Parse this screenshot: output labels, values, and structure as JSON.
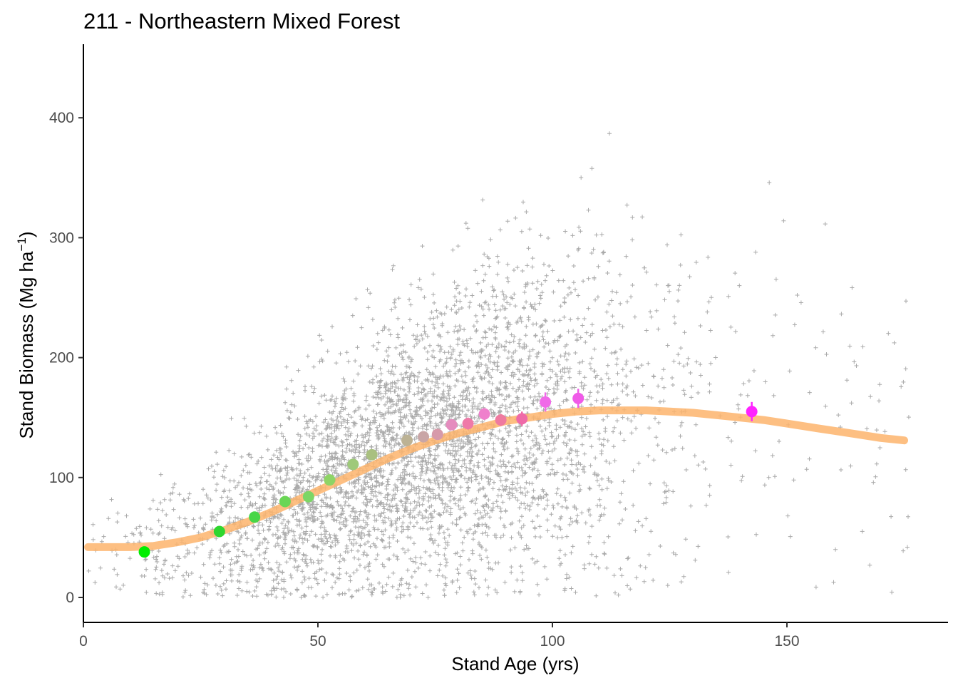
{
  "chart_data": {
    "type": "scatter",
    "title": "211 - Northeastern Mixed Forest",
    "xlabel": "Stand Age (yrs)",
    "ylabel_main": "Stand Biomass (Mg ha",
    "ylabel_sup": "−1",
    "ylabel_close": ")",
    "xlim": [
      0,
      182
    ],
    "ylim": [
      -20,
      460
    ],
    "xticks": [
      0,
      50,
      100,
      150
    ],
    "yticks": [
      0,
      100,
      200,
      300,
      400
    ],
    "grid": false,
    "legend": "none",
    "series": [
      {
        "type": "line",
        "color": "#fdb46c",
        "points": [
          [
            1,
            42
          ],
          [
            10,
            42
          ],
          [
            15,
            43
          ],
          [
            20,
            46
          ],
          [
            25,
            50
          ],
          [
            30,
            56
          ],
          [
            35,
            63
          ],
          [
            40,
            71
          ],
          [
            45,
            80
          ],
          [
            50,
            89
          ],
          [
            55,
            98
          ],
          [
            60,
            107
          ],
          [
            65,
            116
          ],
          [
            70,
            124
          ],
          [
            75,
            131
          ],
          [
            80,
            137
          ],
          [
            85,
            142
          ],
          [
            90,
            147
          ],
          [
            95,
            150
          ],
          [
            100,
            153
          ],
          [
            105,
            155
          ],
          [
            110,
            156
          ],
          [
            115,
            156
          ],
          [
            120,
            156
          ],
          [
            125,
            155
          ],
          [
            130,
            154
          ],
          [
            135,
            152
          ],
          [
            140,
            150
          ],
          [
            145,
            148
          ],
          [
            150,
            145
          ],
          [
            155,
            142
          ],
          [
            160,
            139
          ],
          [
            165,
            136
          ],
          [
            170,
            133
          ],
          [
            175,
            131
          ]
        ]
      },
      {
        "type": "point_with_errorbar",
        "points": [
          {
            "x": 13,
            "y": 38,
            "err": 3,
            "color": "#00ee00"
          },
          {
            "x": 29,
            "y": 55,
            "err": 3,
            "color": "#2fd62f"
          },
          {
            "x": 36.5,
            "y": 67,
            "err": 3,
            "color": "#48d648"
          },
          {
            "x": 43,
            "y": 80,
            "err": 3,
            "color": "#6ad655"
          },
          {
            "x": 48,
            "y": 84,
            "err": 3,
            "color": "#7cd666"
          },
          {
            "x": 52.5,
            "y": 98,
            "err": 3,
            "color": "#8ed466"
          },
          {
            "x": 57.5,
            "y": 111,
            "err": 3,
            "color": "#9ec97a"
          },
          {
            "x": 61.5,
            "y": 119,
            "err": 3,
            "color": "#a9c080"
          },
          {
            "x": 69,
            "y": 131,
            "err": 3,
            "color": "#bcb294"
          },
          {
            "x": 72.5,
            "y": 134,
            "err": 3,
            "color": "#c9a6a6"
          },
          {
            "x": 75.5,
            "y": 136,
            "err": 3,
            "color": "#d79aaa"
          },
          {
            "x": 78.5,
            "y": 144,
            "err": 4,
            "color": "#e58cbe"
          },
          {
            "x": 82,
            "y": 145,
            "err": 5,
            "color": "#ef7aa8"
          },
          {
            "x": 85.5,
            "y": 153,
            "err": 5,
            "color": "#ef80cc"
          },
          {
            "x": 89,
            "y": 148,
            "err": 5,
            "color": "#ef7aa0"
          },
          {
            "x": 93.5,
            "y": 149,
            "err": 6,
            "color": "#ef6aa8"
          },
          {
            "x": 98.5,
            "y": 163,
            "err": 8,
            "color": "#f06ae8"
          },
          {
            "x": 105.5,
            "y": 166,
            "err": 8,
            "color": "#f05ae8"
          },
          {
            "x": 142.5,
            "y": 155,
            "err": 8,
            "color": "#ff22ff"
          }
        ]
      }
    ]
  }
}
